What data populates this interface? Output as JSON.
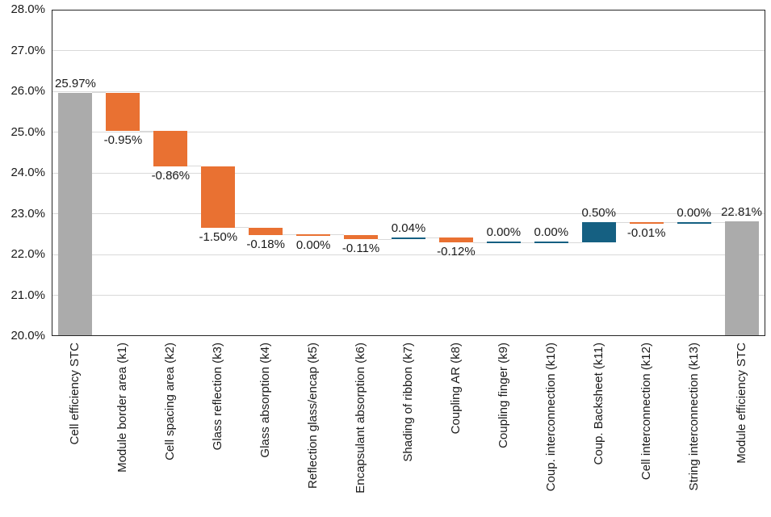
{
  "chart_data": {
    "type": "bar",
    "subtype": "waterfall",
    "title": "",
    "xlabel": "",
    "ylabel": "",
    "ylim": [
      20,
      28
    ],
    "grid": true,
    "legend": false,
    "y_ticks": [
      {
        "value": 28,
        "label": "28.0%"
      },
      {
        "value": 27,
        "label": "27.0%"
      },
      {
        "value": 26,
        "label": "26.0%"
      },
      {
        "value": 25,
        "label": "25.0%"
      },
      {
        "value": 24,
        "label": "24.0%"
      },
      {
        "value": 23,
        "label": "23.0%"
      },
      {
        "value": 22,
        "label": "22.0%"
      },
      {
        "value": 21,
        "label": "21.0%"
      },
      {
        "value": 20,
        "label": "20.0%"
      }
    ],
    "colors": {
      "total": "#ABABAB",
      "decrease": "#E97132",
      "increase": "#156082",
      "gridline": "#D9D9D9",
      "connector": "#D9D9D9",
      "axis_border": "#262626",
      "label_text": "#1A1A1A"
    },
    "bars": [
      {
        "category": "Cell efficiency STC",
        "kind": "total",
        "value": 25.97,
        "label": "25.97%",
        "label_pos": "above"
      },
      {
        "category": "Module border area (k1)",
        "kind": "decrease",
        "value": -0.95,
        "label": "-0.95%",
        "label_pos": "below"
      },
      {
        "category": "Cell spacing area (k2)",
        "kind": "decrease",
        "value": -0.86,
        "label": "-0.86%",
        "label_pos": "below"
      },
      {
        "category": "Glass reflection (k3)",
        "kind": "decrease",
        "value": -1.5,
        "label": "-1.50%",
        "label_pos": "below"
      },
      {
        "category": "Glass absorption (k4)",
        "kind": "decrease",
        "value": -0.18,
        "label": "-0.18%",
        "label_pos": "below"
      },
      {
        "category": "Reflection glass/encap (k5)",
        "kind": "decrease",
        "value": 0.0,
        "label": "0.00%",
        "label_pos": "below"
      },
      {
        "category": "Encapsulant absorption (k6)",
        "kind": "decrease",
        "value": -0.11,
        "label": "-0.11%",
        "label_pos": "below"
      },
      {
        "category": "Shading of ribbon (k7)",
        "kind": "increase",
        "value": 0.04,
        "label": "0.04%",
        "label_pos": "above"
      },
      {
        "category": "Coupling AR (k8)",
        "kind": "decrease",
        "value": -0.12,
        "label": "-0.12%",
        "label_pos": "below"
      },
      {
        "category": "Coupling finger (k9)",
        "kind": "increase",
        "value": 0.0,
        "label": "0.00%",
        "label_pos": "above"
      },
      {
        "category": "Coup. interconnection (k10)",
        "kind": "increase",
        "value": 0.0,
        "label": "0.00%",
        "label_pos": "above"
      },
      {
        "category": "Coup. Backsheet (k11)",
        "kind": "increase",
        "value": 0.5,
        "label": "0.50%",
        "label_pos": "above"
      },
      {
        "category": "Cell interconnection (k12)",
        "kind": "decrease",
        "value": -0.01,
        "label": "-0.01%",
        "label_pos": "below"
      },
      {
        "category": "String interconnection (k13)",
        "kind": "increase",
        "value": 0.0,
        "label": "0.00%",
        "label_pos": "above"
      },
      {
        "category": "Module efficiency STC",
        "kind": "total",
        "value": 22.81,
        "label": "22.81%",
        "label_pos": "above"
      }
    ]
  }
}
